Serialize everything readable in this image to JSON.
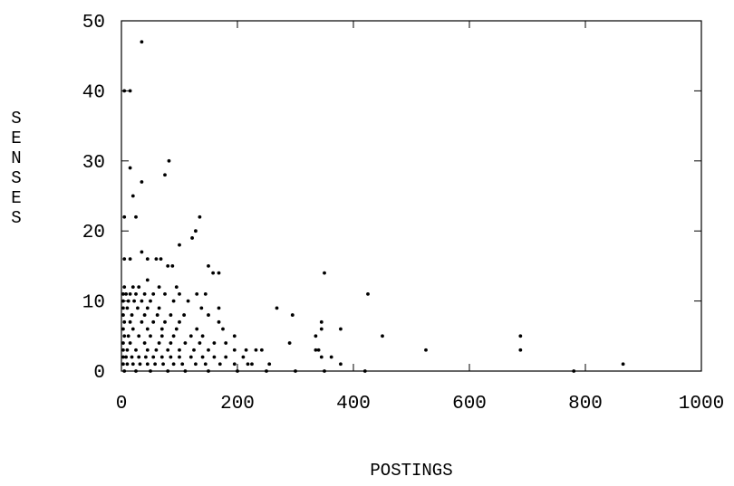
{
  "chart_data": {
    "type": "scatter",
    "title": "",
    "xlabel": "POSTINGS",
    "ylabel": "SENSES",
    "xlim": [
      0,
      1000
    ],
    "ylim": [
      0,
      50
    ],
    "xticks": [
      "0",
      "200",
      "400",
      "600",
      "800",
      "1000"
    ],
    "yticks": [
      "0",
      "10",
      "20",
      "30",
      "40",
      "50"
    ],
    "grid": false,
    "legend": "none",
    "marker_color": "#000000",
    "series": [
      {
        "points": [
          [
            35,
            47
          ],
          [
            5,
            40
          ],
          [
            15,
            40
          ],
          [
            82,
            30
          ],
          [
            15,
            29
          ],
          [
            75,
            28
          ],
          [
            35,
            27
          ],
          [
            20,
            25
          ],
          [
            5,
            22
          ],
          [
            25,
            22
          ],
          [
            135,
            22
          ],
          [
            128,
            20
          ],
          [
            122,
            19
          ],
          [
            100,
            18
          ],
          [
            35,
            17
          ],
          [
            5,
            16
          ],
          [
            15,
            16
          ],
          [
            45,
            16
          ],
          [
            60,
            16
          ],
          [
            68,
            16
          ],
          [
            80,
            15
          ],
          [
            88,
            15
          ],
          [
            150,
            15
          ],
          [
            158,
            14
          ],
          [
            168,
            14
          ],
          [
            350,
            14
          ],
          [
            45,
            13
          ],
          [
            5,
            12
          ],
          [
            20,
            12
          ],
          [
            30,
            12
          ],
          [
            65,
            12
          ],
          [
            95,
            12
          ],
          [
            3,
            11
          ],
          [
            8,
            11
          ],
          [
            15,
            11
          ],
          [
            25,
            11
          ],
          [
            40,
            11
          ],
          [
            55,
            11
          ],
          [
            75,
            11
          ],
          [
            100,
            11
          ],
          [
            130,
            11
          ],
          [
            145,
            11
          ],
          [
            425,
            11
          ],
          [
            3,
            10
          ],
          [
            12,
            10
          ],
          [
            22,
            10
          ],
          [
            35,
            10
          ],
          [
            50,
            10
          ],
          [
            90,
            10
          ],
          [
            115,
            10
          ],
          [
            3,
            9
          ],
          [
            10,
            9
          ],
          [
            28,
            9
          ],
          [
            45,
            9
          ],
          [
            65,
            9
          ],
          [
            138,
            9
          ],
          [
            168,
            9
          ],
          [
            268,
            9
          ],
          [
            150,
            8
          ],
          [
            3,
            8
          ],
          [
            18,
            8
          ],
          [
            40,
            8
          ],
          [
            62,
            8
          ],
          [
            85,
            8
          ],
          [
            108,
            8
          ],
          [
            295,
            8
          ],
          [
            5,
            7
          ],
          [
            15,
            7
          ],
          [
            35,
            7
          ],
          [
            55,
            7
          ],
          [
            75,
            7
          ],
          [
            100,
            7
          ],
          [
            168,
            7
          ],
          [
            345,
            7
          ],
          [
            3,
            6
          ],
          [
            20,
            6
          ],
          [
            45,
            6
          ],
          [
            70,
            6
          ],
          [
            95,
            6
          ],
          [
            130,
            6
          ],
          [
            175,
            6
          ],
          [
            345,
            6
          ],
          [
            378,
            6
          ],
          [
            5,
            5
          ],
          [
            12,
            5
          ],
          [
            30,
            5
          ],
          [
            50,
            5
          ],
          [
            70,
            5
          ],
          [
            90,
            5
          ],
          [
            120,
            5
          ],
          [
            140,
            5
          ],
          [
            195,
            5
          ],
          [
            335,
            5
          ],
          [
            450,
            5
          ],
          [
            688,
            5
          ],
          [
            3,
            4
          ],
          [
            15,
            4
          ],
          [
            40,
            4
          ],
          [
            65,
            4
          ],
          [
            85,
            4
          ],
          [
            110,
            4
          ],
          [
            135,
            4
          ],
          [
            160,
            4
          ],
          [
            180,
            4
          ],
          [
            290,
            4
          ],
          [
            3,
            3
          ],
          [
            10,
            3
          ],
          [
            25,
            3
          ],
          [
            45,
            3
          ],
          [
            60,
            3
          ],
          [
            80,
            3
          ],
          [
            100,
            3
          ],
          [
            125,
            3
          ],
          [
            150,
            3
          ],
          [
            195,
            3
          ],
          [
            215,
            3
          ],
          [
            232,
            3
          ],
          [
            242,
            3
          ],
          [
            335,
            3
          ],
          [
            340,
            3
          ],
          [
            525,
            3
          ],
          [
            688,
            3
          ],
          [
            3,
            2
          ],
          [
            8,
            2
          ],
          [
            18,
            2
          ],
          [
            30,
            2
          ],
          [
            42,
            2
          ],
          [
            55,
            2
          ],
          [
            70,
            2
          ],
          [
            85,
            2
          ],
          [
            100,
            2
          ],
          [
            120,
            2
          ],
          [
            140,
            2
          ],
          [
            160,
            2
          ],
          [
            180,
            2
          ],
          [
            210,
            2
          ],
          [
            345,
            2
          ],
          [
            362,
            2
          ],
          [
            3,
            1
          ],
          [
            10,
            1
          ],
          [
            20,
            1
          ],
          [
            32,
            1
          ],
          [
            45,
            1
          ],
          [
            58,
            1
          ],
          [
            72,
            1
          ],
          [
            90,
            1
          ],
          [
            105,
            1
          ],
          [
            128,
            1
          ],
          [
            145,
            1
          ],
          [
            170,
            1
          ],
          [
            195,
            1
          ],
          [
            218,
            1
          ],
          [
            225,
            1
          ],
          [
            255,
            1
          ],
          [
            378,
            1
          ],
          [
            865,
            1
          ],
          [
            5,
            0
          ],
          [
            25,
            0
          ],
          [
            50,
            0
          ],
          [
            80,
            0
          ],
          [
            110,
            0
          ],
          [
            150,
            0
          ],
          [
            200,
            0
          ],
          [
            250,
            0
          ],
          [
            300,
            0
          ],
          [
            350,
            0
          ],
          [
            420,
            0
          ],
          [
            780,
            0
          ]
        ]
      }
    ]
  }
}
